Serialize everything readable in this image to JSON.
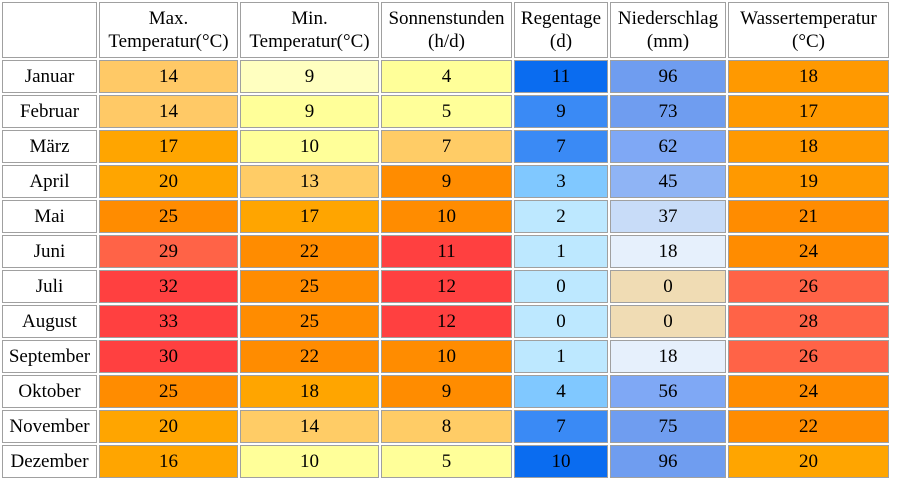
{
  "columns": [
    {
      "line1": "",
      "line2": ""
    },
    {
      "line1": "Max.",
      "line2": "Temperatur(°C)"
    },
    {
      "line1": "Min.",
      "line2": "Temperatur(°C)"
    },
    {
      "line1": "Sonnenstunden",
      "line2": "(h/d)"
    },
    {
      "line1": "Regentage",
      "line2": "(d)"
    },
    {
      "line1": "Niederschlag",
      "line2": "(mm)"
    },
    {
      "line1": "Wassertemperatur",
      "line2": "(°C)"
    }
  ],
  "rows": [
    {
      "month": "Januar",
      "values": [
        "14",
        "9",
        "4",
        "11",
        "96",
        "18"
      ]
    },
    {
      "month": "Februar",
      "values": [
        "14",
        "9",
        "5",
        "9",
        "73",
        "17"
      ]
    },
    {
      "month": "März",
      "values": [
        "17",
        "10",
        "7",
        "7",
        "62",
        "18"
      ]
    },
    {
      "month": "April",
      "values": [
        "20",
        "13",
        "9",
        "3",
        "45",
        "19"
      ]
    },
    {
      "month": "Mai",
      "values": [
        "25",
        "17",
        "10",
        "2",
        "37",
        "21"
      ]
    },
    {
      "month": "Juni",
      "values": [
        "29",
        "22",
        "11",
        "1",
        "18",
        "24"
      ]
    },
    {
      "month": "Juli",
      "values": [
        "32",
        "25",
        "12",
        "0",
        "0",
        "26"
      ]
    },
    {
      "month": "August",
      "values": [
        "33",
        "25",
        "12",
        "0",
        "0",
        "28"
      ]
    },
    {
      "month": "September",
      "values": [
        "30",
        "22",
        "10",
        "1",
        "18",
        "26"
      ]
    },
    {
      "month": "Oktober",
      "values": [
        "25",
        "18",
        "9",
        "4",
        "56",
        "24"
      ]
    },
    {
      "month": "November",
      "values": [
        "20",
        "14",
        "8",
        "7",
        "75",
        "22"
      ]
    },
    {
      "month": "Dezember",
      "values": [
        "16",
        "10",
        "5",
        "10",
        "96",
        "20"
      ]
    }
  ],
  "colors": [
    [
      "#ffc966",
      "#ffffc0",
      "#ffff99",
      "#0a6cf0",
      "#6f9df0",
      "#ff9900"
    ],
    [
      "#ffc966",
      "#ffff99",
      "#ffff99",
      "#3a8af5",
      "#6f9df0",
      "#ff9900"
    ],
    [
      "#ffa500",
      "#ffff99",
      "#ffcc66",
      "#3a8af5",
      "#7fa8f5",
      "#ff9900"
    ],
    [
      "#ffa500",
      "#ffcc66",
      "#ff8c00",
      "#80c8ff",
      "#8fb4f5",
      "#ff9900"
    ],
    [
      "#ff8c00",
      "#ffa500",
      "#ff8c00",
      "#bde8ff",
      "#c8dcf8",
      "#ff8c00"
    ],
    [
      "#ff6347",
      "#ff8c00",
      "#ff4040",
      "#bde8ff",
      "#e6f0fc",
      "#ff8c00"
    ],
    [
      "#ff4040",
      "#ff8c00",
      "#ff4040",
      "#bde8ff",
      "#f0dcb4",
      "#ff6347"
    ],
    [
      "#ff4040",
      "#ff8c00",
      "#ff4040",
      "#bde8ff",
      "#f0dcb4",
      "#ff6347"
    ],
    [
      "#ff4040",
      "#ff8c00",
      "#ff8c00",
      "#bde8ff",
      "#e6f0fc",
      "#ff6347"
    ],
    [
      "#ff8c00",
      "#ffa500",
      "#ff8c00",
      "#80c8ff",
      "#7fa8f5",
      "#ff8c00"
    ],
    [
      "#ffa500",
      "#ffcc66",
      "#ffcc66",
      "#3a8af5",
      "#6f9df0",
      "#ff8c00"
    ],
    [
      "#ffa500",
      "#ffff99",
      "#ffff99",
      "#0a6cf0",
      "#6f9df0",
      "#ffa500"
    ]
  ]
}
